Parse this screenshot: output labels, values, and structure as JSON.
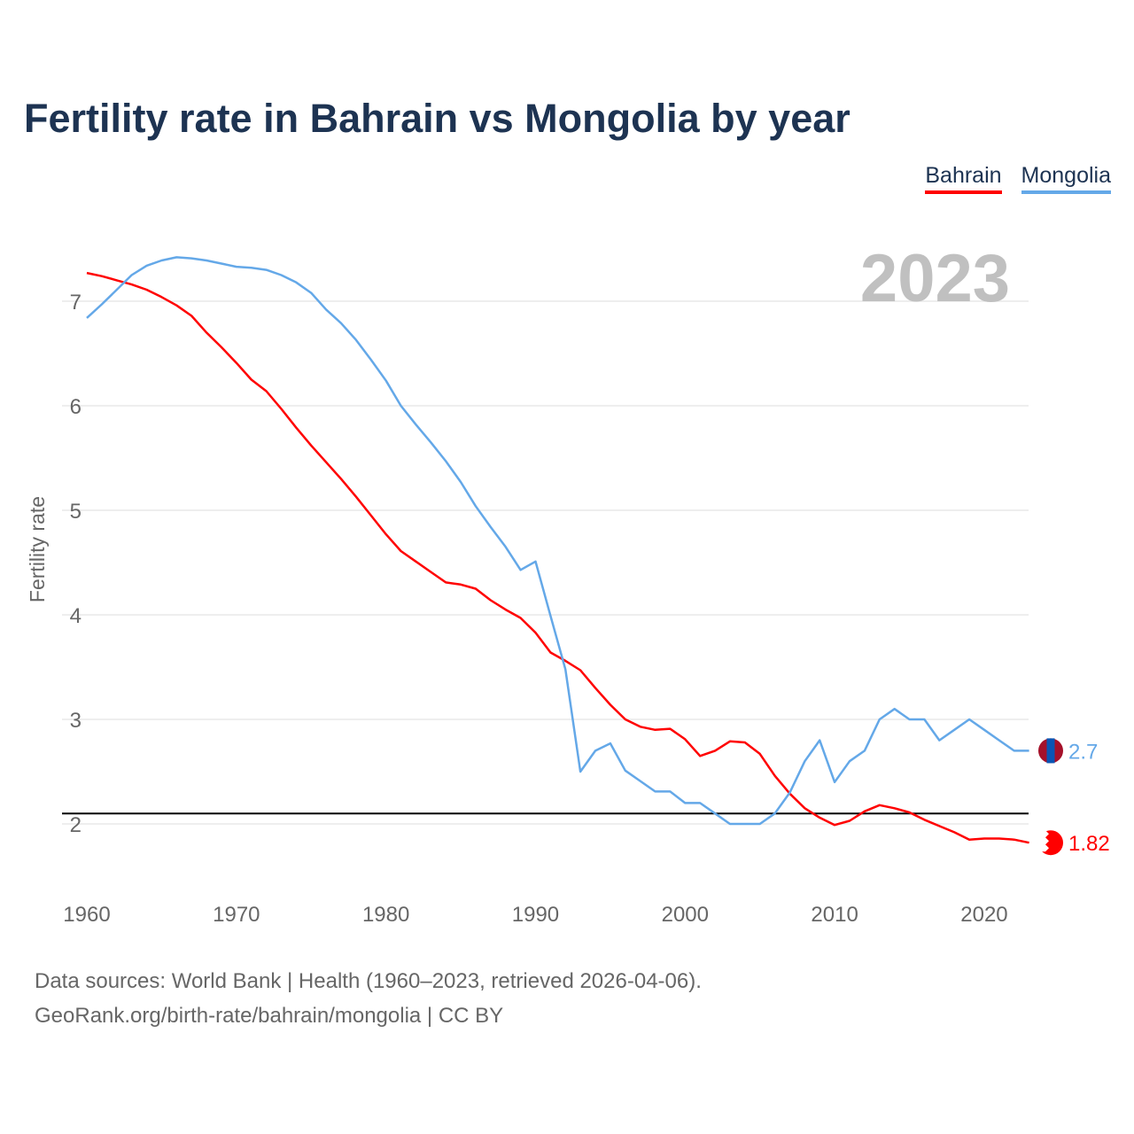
{
  "title": "Fertility rate in Bahrain vs Mongolia by year",
  "legend": [
    "Bahrain",
    "Mongolia"
  ],
  "year_watermark": "2023",
  "footer": {
    "line1": "Data sources: World Bank | Health (1960–2023, retrieved 2026-04-06).",
    "line2": "GeoRank.org/birth-rate/bahrain/mongolia | CC BY"
  },
  "chart_data": {
    "type": "line",
    "title": "Fertility rate in Bahrain vs Mongolia by year",
    "xlabel": "",
    "ylabel": "Fertility rate",
    "xlim": [
      1960,
      2023
    ],
    "ylim": [
      1.5,
      7.6
    ],
    "x_ticks": [
      1960,
      1970,
      1980,
      1990,
      2000,
      2010,
      2020
    ],
    "y_ticks": [
      2,
      3,
      4,
      5,
      6,
      7
    ],
    "grid": true,
    "legend_position": "top-right",
    "reference_line": 2.1,
    "x_start": 1960,
    "series": [
      {
        "name": "Bahrain",
        "color": "#ff0000",
        "end_label": "1.82",
        "values": [
          7.27,
          7.24,
          7.2,
          7.16,
          7.11,
          7.04,
          6.96,
          6.86,
          6.7,
          6.56,
          6.41,
          6.25,
          6.14,
          5.97,
          5.79,
          5.62,
          5.46,
          5.3,
          5.13,
          4.95,
          4.77,
          4.61,
          4.51,
          4.41,
          4.31,
          4.29,
          4.25,
          4.14,
          4.05,
          3.97,
          3.83,
          3.64,
          3.56,
          3.47,
          3.3,
          3.14,
          3.0,
          2.93,
          2.9,
          2.91,
          2.81,
          2.65,
          2.7,
          2.79,
          2.78,
          2.67,
          2.46,
          2.29,
          2.15,
          2.06,
          1.99,
          2.03,
          2.12,
          2.18,
          2.15,
          2.11,
          2.04,
          1.98,
          1.92,
          1.85,
          1.86,
          1.86,
          1.85,
          1.82
        ]
      },
      {
        "name": "Mongolia",
        "color": "#64a8e8",
        "end_label": "2.7",
        "values": [
          6.84,
          6.97,
          7.11,
          7.25,
          7.34,
          7.39,
          7.42,
          7.41,
          7.39,
          7.36,
          7.33,
          7.32,
          7.3,
          7.25,
          7.18,
          7.08,
          6.92,
          6.79,
          6.63,
          6.44,
          6.24,
          6.0,
          5.82,
          5.65,
          5.47,
          5.27,
          5.04,
          4.84,
          4.65,
          4.43,
          4.51,
          3.99,
          3.48,
          2.5,
          2.7,
          2.77,
          2.51,
          2.41,
          2.31,
          2.31,
          2.2,
          2.2,
          2.1,
          2.0,
          2.0,
          2.0,
          2.1,
          2.3,
          2.6,
          2.8,
          2.4,
          2.6,
          2.7,
          3.0,
          3.1,
          3.0,
          3.0,
          2.8,
          2.9,
          3.0,
          2.9,
          2.8,
          2.7,
          2.7
        ]
      }
    ]
  }
}
